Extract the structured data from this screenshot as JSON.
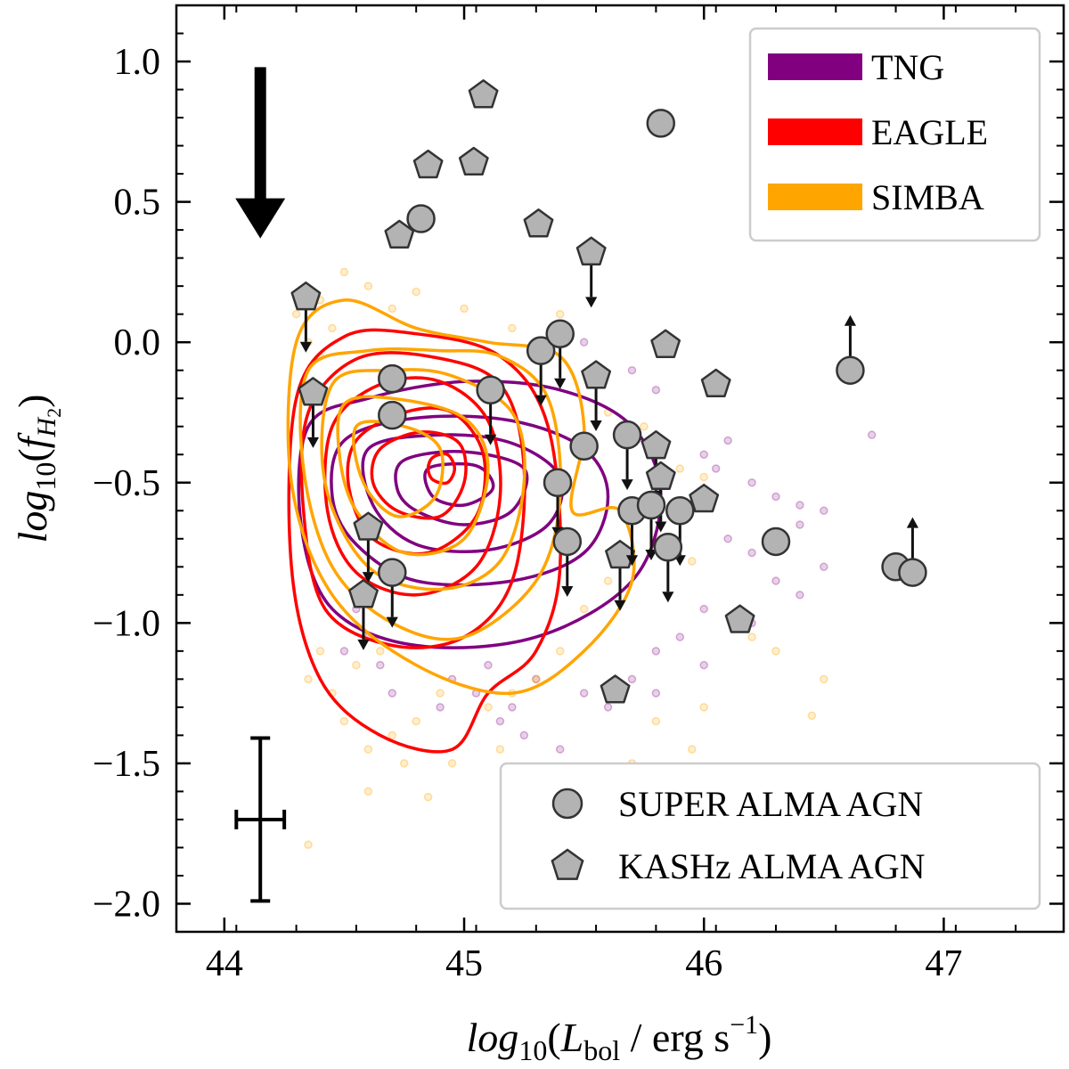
{
  "chart_data": {
    "type": "scatter",
    "title": "",
    "xlabel": {
      "prefix": "log",
      "sub1": "10",
      "open": "(",
      "L": "L",
      "Lsub": "bol",
      "units": " / erg s",
      "exp": "−1",
      "close": ")"
    },
    "ylabel": {
      "prefix": "log",
      "sub1": "10",
      "open": "(",
      "f": "f",
      "fsub": "H",
      "fsub2": "2",
      "close": ")"
    },
    "xlim": [
      43.8,
      47.5
    ],
    "ylim": [
      -2.1,
      1.2
    ],
    "x_ticks": [
      44,
      45,
      46,
      47
    ],
    "x_tick_labels": [
      "44",
      "45",
      "46",
      "47"
    ],
    "y_ticks": [
      1.0,
      0.5,
      0.0,
      -0.5,
      -1.0,
      -1.5,
      -2.0
    ],
    "y_tick_labels": [
      "1.0",
      "0.5",
      "0.0",
      "−0.5",
      "−1.0",
      "−1.5",
      "−2.0"
    ],
    "colors": {
      "TNG": "#800080",
      "EAGLE": "#ff0000",
      "SIMBA": "#ffa500",
      "marker_fill": "#b3b3b3",
      "marker_edge": "#333333"
    },
    "legend_sims": [
      {
        "label": "TNG",
        "color": "#800080"
      },
      {
        "label": "EAGLE",
        "color": "#ff0000"
      },
      {
        "label": "SIMBA",
        "color": "#ffa500"
      }
    ],
    "legend_obs": [
      {
        "label": "SUPER ALMA AGN",
        "marker": "circle"
      },
      {
        "label": "KASHz ALMA AGN",
        "marker": "pentagon"
      }
    ],
    "contours": {
      "TNG": [
        [
          [
            44.35,
            -0.3
          ],
          [
            44.6,
            -0.2
          ],
          [
            45.0,
            -0.14
          ],
          [
            45.4,
            -0.17
          ],
          [
            45.7,
            -0.3
          ],
          [
            45.82,
            -0.55
          ],
          [
            45.7,
            -0.85
          ],
          [
            45.3,
            -1.05
          ],
          [
            44.8,
            -1.08
          ],
          [
            44.45,
            -0.95
          ],
          [
            44.32,
            -0.65
          ]
        ],
        [
          [
            44.5,
            -0.35
          ],
          [
            44.8,
            -0.27
          ],
          [
            45.2,
            -0.28
          ],
          [
            45.5,
            -0.38
          ],
          [
            45.6,
            -0.55
          ],
          [
            45.5,
            -0.75
          ],
          [
            45.2,
            -0.85
          ],
          [
            44.8,
            -0.85
          ],
          [
            44.55,
            -0.72
          ],
          [
            44.45,
            -0.55
          ]
        ],
        [
          [
            44.6,
            -0.38
          ],
          [
            44.9,
            -0.33
          ],
          [
            45.2,
            -0.36
          ],
          [
            45.4,
            -0.48
          ],
          [
            45.35,
            -0.65
          ],
          [
            45.1,
            -0.74
          ],
          [
            44.8,
            -0.72
          ],
          [
            44.62,
            -0.58
          ]
        ],
        [
          [
            44.75,
            -0.42
          ],
          [
            45.0,
            -0.39
          ],
          [
            45.25,
            -0.45
          ],
          [
            45.2,
            -0.6
          ],
          [
            45.0,
            -0.65
          ],
          [
            44.8,
            -0.6
          ],
          [
            44.72,
            -0.52
          ]
        ],
        [
          [
            44.85,
            -0.45
          ],
          [
            45.05,
            -0.44
          ],
          [
            45.12,
            -0.52
          ],
          [
            45.0,
            -0.58
          ],
          [
            44.87,
            -0.55
          ]
        ]
      ],
      "EAGLE": [
        [
          [
            44.3,
            -0.2
          ],
          [
            44.5,
            0.02
          ],
          [
            44.8,
            0.03
          ],
          [
            45.15,
            -0.05
          ],
          [
            45.35,
            -0.3
          ],
          [
            45.4,
            -0.8
          ],
          [
            45.3,
            -1.1
          ],
          [
            45.1,
            -1.25
          ],
          [
            44.95,
            -1.45
          ],
          [
            44.65,
            -1.4
          ],
          [
            44.4,
            -1.2
          ],
          [
            44.28,
            -0.8
          ]
        ],
        [
          [
            44.35,
            -0.25
          ],
          [
            44.55,
            -0.06
          ],
          [
            44.85,
            -0.05
          ],
          [
            45.15,
            -0.15
          ],
          [
            45.25,
            -0.45
          ],
          [
            45.2,
            -0.85
          ],
          [
            45.0,
            -1.05
          ],
          [
            44.7,
            -1.08
          ],
          [
            44.42,
            -0.95
          ],
          [
            44.33,
            -0.6
          ]
        ],
        [
          [
            44.45,
            -0.3
          ],
          [
            44.65,
            -0.15
          ],
          [
            44.9,
            -0.14
          ],
          [
            45.1,
            -0.28
          ],
          [
            45.15,
            -0.55
          ],
          [
            45.05,
            -0.8
          ],
          [
            44.8,
            -0.9
          ],
          [
            44.55,
            -0.82
          ],
          [
            44.43,
            -0.6
          ]
        ],
        [
          [
            44.55,
            -0.35
          ],
          [
            44.75,
            -0.25
          ],
          [
            44.95,
            -0.25
          ],
          [
            45.08,
            -0.4
          ],
          [
            45.05,
            -0.62
          ],
          [
            44.85,
            -0.75
          ],
          [
            44.62,
            -0.7
          ],
          [
            44.52,
            -0.52
          ]
        ],
        [
          [
            44.65,
            -0.38
          ],
          [
            44.82,
            -0.32
          ],
          [
            44.98,
            -0.36
          ],
          [
            45.0,
            -0.5
          ],
          [
            44.9,
            -0.62
          ],
          [
            44.72,
            -0.6
          ],
          [
            44.62,
            -0.5
          ]
        ],
        [
          [
            44.87,
            -0.41
          ],
          [
            44.93,
            -0.4
          ],
          [
            44.96,
            -0.45
          ],
          [
            44.93,
            -0.5
          ],
          [
            44.87,
            -0.49
          ],
          [
            44.85,
            -0.45
          ]
        ]
      ],
      "SIMBA": [
        [
          [
            44.3,
            0.0
          ],
          [
            44.5,
            0.15
          ],
          [
            44.8,
            0.05
          ],
          [
            45.1,
            0.0
          ],
          [
            45.4,
            -0.05
          ],
          [
            45.5,
            -0.3
          ],
          [
            45.45,
            -0.6
          ],
          [
            45.65,
            -0.6
          ],
          [
            45.7,
            -0.85
          ],
          [
            45.5,
            -1.1
          ],
          [
            45.2,
            -1.25
          ],
          [
            44.8,
            -1.15
          ],
          [
            44.45,
            -0.9
          ],
          [
            44.28,
            -0.5
          ]
        ],
        [
          [
            44.35,
            -0.1
          ],
          [
            44.6,
            -0.03
          ],
          [
            44.9,
            -0.03
          ],
          [
            45.15,
            -0.05
          ],
          [
            45.35,
            -0.2
          ],
          [
            45.4,
            -0.55
          ],
          [
            45.3,
            -0.85
          ],
          [
            45.0,
            -1.05
          ],
          [
            44.7,
            -1.0
          ],
          [
            44.45,
            -0.8
          ],
          [
            44.33,
            -0.45
          ]
        ],
        [
          [
            44.45,
            -0.15
          ],
          [
            44.7,
            -0.1
          ],
          [
            44.95,
            -0.12
          ],
          [
            45.2,
            -0.25
          ],
          [
            45.25,
            -0.5
          ],
          [
            45.15,
            -0.78
          ],
          [
            44.9,
            -0.88
          ],
          [
            44.6,
            -0.8
          ],
          [
            44.42,
            -0.5
          ]
        ],
        [
          [
            44.5,
            -0.22
          ],
          [
            44.7,
            -0.2
          ],
          [
            45.0,
            -0.27
          ],
          [
            45.1,
            -0.45
          ],
          [
            45.0,
            -0.7
          ],
          [
            44.75,
            -0.75
          ],
          [
            44.55,
            -0.6
          ],
          [
            44.48,
            -0.4
          ]
        ],
        [
          [
            44.55,
            -0.3
          ],
          [
            44.75,
            -0.3
          ],
          [
            44.9,
            -0.38
          ],
          [
            44.88,
            -0.55
          ],
          [
            44.72,
            -0.62
          ],
          [
            44.58,
            -0.5
          ]
        ]
      ]
    },
    "super_points": [
      {
        "x": 45.82,
        "y": 0.78,
        "limit": "none"
      },
      {
        "x": 44.82,
        "y": 0.44,
        "limit": "none"
      },
      {
        "x": 44.7,
        "y": -0.13,
        "limit": "none"
      },
      {
        "x": 44.7,
        "y": -0.26,
        "limit": "none"
      },
      {
        "x": 45.5,
        "y": -0.37,
        "limit": "none"
      },
      {
        "x": 46.3,
        "y": -0.71,
        "limit": "none"
      },
      {
        "x": 46.8,
        "y": -0.8,
        "limit": "none"
      },
      {
        "x": 45.32,
        "y": -0.03,
        "limit": "upper"
      },
      {
        "x": 45.4,
        "y": 0.03,
        "limit": "upper"
      },
      {
        "x": 45.11,
        "y": -0.17,
        "limit": "upper"
      },
      {
        "x": 45.68,
        "y": -0.33,
        "limit": "upper"
      },
      {
        "x": 45.39,
        "y": -0.5,
        "limit": "upper"
      },
      {
        "x": 45.43,
        "y": -0.71,
        "limit": "upper"
      },
      {
        "x": 45.7,
        "y": -0.6,
        "limit": "upper"
      },
      {
        "x": 45.78,
        "y": -0.58,
        "limit": "upper"
      },
      {
        "x": 45.9,
        "y": -0.6,
        "limit": "upper"
      },
      {
        "x": 45.85,
        "y": -0.73,
        "limit": "upper"
      },
      {
        "x": 44.7,
        "y": -0.82,
        "limit": "upper"
      },
      {
        "x": 46.61,
        "y": -0.1,
        "limit": "lower"
      },
      {
        "x": 46.87,
        "y": -0.82,
        "limit": "lower"
      }
    ],
    "kashz_points": [
      {
        "x": 45.08,
        "y": 0.88,
        "limit": "none"
      },
      {
        "x": 44.85,
        "y": 0.63,
        "limit": "none"
      },
      {
        "x": 45.04,
        "y": 0.64,
        "limit": "none"
      },
      {
        "x": 45.31,
        "y": 0.42,
        "limit": "none"
      },
      {
        "x": 44.73,
        "y": 0.38,
        "limit": "none"
      },
      {
        "x": 45.84,
        "y": -0.01,
        "limit": "none"
      },
      {
        "x": 46.05,
        "y": -0.15,
        "limit": "none"
      },
      {
        "x": 46.0,
        "y": -0.56,
        "limit": "none"
      },
      {
        "x": 46.15,
        "y": -0.99,
        "limit": "none"
      },
      {
        "x": 45.63,
        "y": -1.24,
        "limit": "none"
      },
      {
        "x": 45.53,
        "y": 0.32,
        "limit": "upper"
      },
      {
        "x": 44.34,
        "y": 0.16,
        "limit": "upper"
      },
      {
        "x": 44.37,
        "y": -0.18,
        "limit": "upper"
      },
      {
        "x": 45.55,
        "y": -0.12,
        "limit": "upper"
      },
      {
        "x": 45.8,
        "y": -0.37,
        "limit": "upper"
      },
      {
        "x": 45.82,
        "y": -0.48,
        "limit": "upper"
      },
      {
        "x": 44.6,
        "y": -0.66,
        "limit": "upper"
      },
      {
        "x": 44.58,
        "y": -0.9,
        "limit": "upper"
      },
      {
        "x": 45.65,
        "y": -0.76,
        "limit": "upper"
      }
    ],
    "scatter_tng": [
      [
        45.5,
        0.0
      ],
      [
        45.7,
        -0.1
      ],
      [
        45.8,
        -0.17
      ],
      [
        46.0,
        -0.4
      ],
      [
        46.05,
        -0.45
      ],
      [
        46.1,
        -0.35
      ],
      [
        46.2,
        -0.5
      ],
      [
        46.3,
        -0.55
      ],
      [
        46.4,
        -0.58
      ],
      [
        46.7,
        -0.33
      ],
      [
        46.5,
        -0.6
      ],
      [
        46.4,
        -0.65
      ],
      [
        46.2,
        -0.75
      ],
      [
        46.1,
        -0.7
      ],
      [
        46.3,
        -0.85
      ],
      [
        46.0,
        -0.95
      ],
      [
        45.9,
        -1.05
      ],
      [
        45.8,
        -1.1
      ],
      [
        46.0,
        -1.15
      ],
      [
        45.7,
        -1.2
      ],
      [
        45.6,
        -1.3
      ],
      [
        45.5,
        -1.25
      ],
      [
        45.3,
        -1.2
      ],
      [
        45.1,
        -1.15
      ],
      [
        44.9,
        -1.3
      ],
      [
        44.7,
        -1.25
      ],
      [
        44.6,
        -1.05
      ],
      [
        44.5,
        -1.1
      ],
      [
        45.2,
        -1.3
      ],
      [
        45.4,
        -1.45
      ],
      [
        45.8,
        -1.25
      ],
      [
        46.2,
        -1.0
      ],
      [
        46.4,
        -0.9
      ],
      [
        46.5,
        -0.8
      ],
      [
        44.55,
        -0.95
      ],
      [
        44.65,
        -1.15
      ],
      [
        44.95,
        -1.2
      ],
      [
        45.05,
        -1.25
      ],
      [
        45.15,
        -1.35
      ],
      [
        45.25,
        -1.4
      ]
    ],
    "scatter_simba": [
      [
        44.5,
        0.25
      ],
      [
        44.4,
        0.15
      ],
      [
        44.6,
        0.2
      ],
      [
        44.7,
        0.12
      ],
      [
        44.8,
        0.18
      ],
      [
        45.0,
        0.12
      ],
      [
        45.2,
        0.05
      ],
      [
        45.4,
        0.1
      ],
      [
        44.3,
        0.1
      ],
      [
        44.35,
        0.0
      ],
      [
        44.4,
        -0.05
      ],
      [
        44.45,
        0.05
      ],
      [
        45.6,
        -0.25
      ],
      [
        45.75,
        -0.3
      ],
      [
        45.8,
        -0.4
      ],
      [
        45.9,
        -0.45
      ],
      [
        46.0,
        -0.48
      ],
      [
        45.7,
        -0.6
      ],
      [
        45.8,
        -0.7
      ],
      [
        45.95,
        -0.78
      ],
      [
        45.6,
        -0.85
      ],
      [
        45.5,
        -0.95
      ],
      [
        45.4,
        -1.1
      ],
      [
        45.3,
        -1.2
      ],
      [
        45.2,
        -1.25
      ],
      [
        45.1,
        -1.3
      ],
      [
        44.9,
        -1.25
      ],
      [
        44.8,
        -1.35
      ],
      [
        44.7,
        -1.4
      ],
      [
        44.6,
        -1.45
      ],
      [
        44.5,
        -1.35
      ],
      [
        44.45,
        -1.25
      ],
      [
        44.35,
        -1.2
      ],
      [
        44.4,
        -1.1
      ],
      [
        44.55,
        -1.15
      ],
      [
        44.65,
        -1.1
      ],
      [
        44.95,
        -1.5
      ],
      [
        44.85,
        -1.62
      ],
      [
        44.35,
        -1.79
      ],
      [
        46.2,
        -1.05
      ],
      [
        46.3,
        -1.1
      ],
      [
        46.5,
        -1.2
      ],
      [
        46.0,
        -1.3
      ],
      [
        45.8,
        -1.35
      ],
      [
        45.7,
        -1.5
      ],
      [
        46.45,
        -1.33
      ],
      [
        45.95,
        -1.45
      ],
      [
        44.75,
        -1.5
      ],
      [
        45.15,
        -1.45
      ],
      [
        44.6,
        -1.6
      ]
    ],
    "error_bar": {
      "x": 44.15,
      "y": -1.7,
      "xerr": 0.1,
      "yerr": 0.29
    },
    "annotation_arrow": {
      "x": 44.15,
      "y_start": 0.98,
      "y_end": 0.37
    }
  }
}
